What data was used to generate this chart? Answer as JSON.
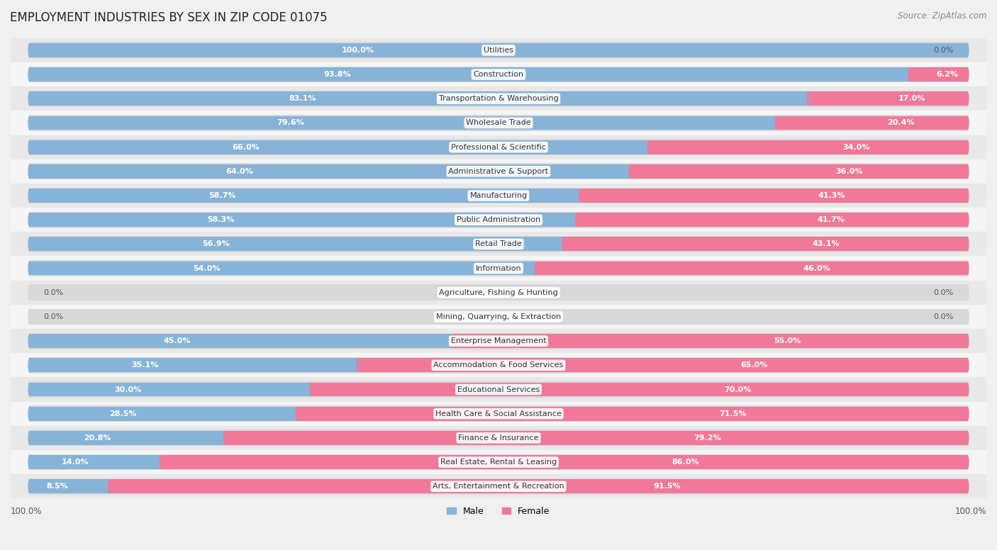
{
  "title": "EMPLOYMENT INDUSTRIES BY SEX IN ZIP CODE 01075",
  "source": "Source: ZipAtlas.com",
  "industries": [
    {
      "name": "Utilities",
      "male": 100.0,
      "female": 0.0
    },
    {
      "name": "Construction",
      "male": 93.8,
      "female": 6.2
    },
    {
      "name": "Transportation & Warehousing",
      "male": 83.1,
      "female": 17.0
    },
    {
      "name": "Wholesale Trade",
      "male": 79.6,
      "female": 20.4
    },
    {
      "name": "Professional & Scientific",
      "male": 66.0,
      "female": 34.0
    },
    {
      "name": "Administrative & Support",
      "male": 64.0,
      "female": 36.0
    },
    {
      "name": "Manufacturing",
      "male": 58.7,
      "female": 41.3
    },
    {
      "name": "Public Administration",
      "male": 58.3,
      "female": 41.7
    },
    {
      "name": "Retail Trade",
      "male": 56.9,
      "female": 43.1
    },
    {
      "name": "Information",
      "male": 54.0,
      "female": 46.0
    },
    {
      "name": "Agriculture, Fishing & Hunting",
      "male": 0.0,
      "female": 0.0
    },
    {
      "name": "Mining, Quarrying, & Extraction",
      "male": 0.0,
      "female": 0.0
    },
    {
      "name": "Enterprise Management",
      "male": 45.0,
      "female": 55.0
    },
    {
      "name": "Accommodation & Food Services",
      "male": 35.1,
      "female": 65.0
    },
    {
      "name": "Educational Services",
      "male": 30.0,
      "female": 70.0
    },
    {
      "name": "Health Care & Social Assistance",
      "male": 28.5,
      "female": 71.5
    },
    {
      "name": "Finance & Insurance",
      "male": 20.8,
      "female": 79.2
    },
    {
      "name": "Real Estate, Rental & Leasing",
      "male": 14.0,
      "female": 86.0
    },
    {
      "name": "Arts, Entertainment & Recreation",
      "male": 8.5,
      "female": 91.5
    }
  ],
  "male_color": "#87b3d8",
  "female_color": "#f07898",
  "bar_height": 0.58,
  "bg_color": "#f0f0f0",
  "row_bg_even": "#e8e8e8",
  "row_bg_odd": "#f5f5f5",
  "title_fontsize": 12,
  "source_fontsize": 8.5,
  "label_fontsize": 8,
  "industry_fontsize": 8,
  "pct_label_white_threshold": 5.0
}
